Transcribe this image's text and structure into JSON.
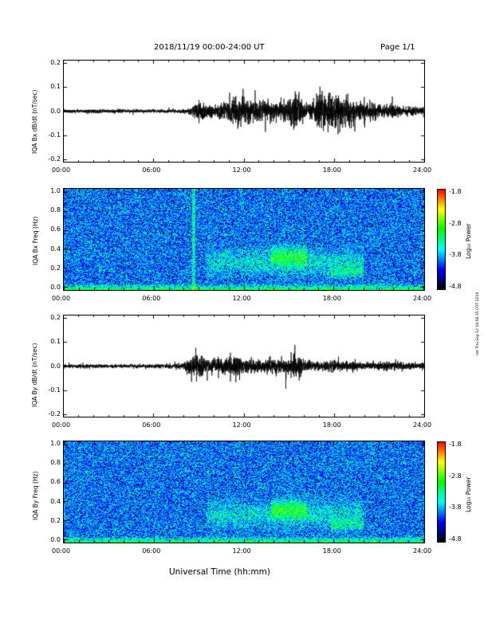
{
  "header": {
    "date_range": "2018/11/19  00:00-24:00 UT",
    "page": "Page 1/1"
  },
  "footer": {
    "xlabel": "Universal Time (hh:mm)"
  },
  "side_note": "nst Thu Sep 12 16:56:35 CDT 2019",
  "colorbar": {
    "ticks": [
      "-1.8",
      "-2.8",
      "-3.8",
      "-4.8"
    ],
    "label": "Log₁₀ Power",
    "colors": [
      "#ff0000",
      "#ffff00",
      "#00ff00",
      "#00ffff",
      "#0000ff",
      "#000000"
    ]
  },
  "chart_data": [
    {
      "type": "line",
      "ylabel": "IQA Bx dB/dt (nT/sec)",
      "x_ticks": [
        "00:00",
        "06:00",
        "12:00",
        "18:00",
        "24:00"
      ],
      "y_ticks": [
        "0.2",
        "0.1",
        "0.0",
        "-0.1",
        "-0.2"
      ],
      "xlim": [
        0,
        24
      ],
      "ylim": [
        -0.2,
        0.2
      ],
      "envelope": {
        "x_hours": [
          0,
          2,
          4,
          6,
          8,
          8.5,
          9,
          9.5,
          10,
          11,
          11.5,
          12,
          12.5,
          13,
          14,
          15,
          15.5,
          16,
          16.5,
          17,
          17.5,
          18,
          19,
          20,
          21,
          22,
          23,
          24
        ],
        "amplitude": [
          0.008,
          0.008,
          0.008,
          0.006,
          0.008,
          0.02,
          0.05,
          0.035,
          0.03,
          0.04,
          0.07,
          0.05,
          0.06,
          0.04,
          0.04,
          0.05,
          0.09,
          0.03,
          0.04,
          0.08,
          0.09,
          0.08,
          0.06,
          0.04,
          0.03,
          0.025,
          0.02,
          0.02
        ]
      }
    },
    {
      "type": "heatmap",
      "ylabel": "IQA Bx Freq (Hz)",
      "x_ticks": [
        "00:00",
        "06:00",
        "12:00",
        "18:00",
        "24:00"
      ],
      "y_ticks": [
        "1.0",
        "0.8",
        "0.6",
        "0.4",
        "0.2",
        "0.0"
      ],
      "xlim": [
        0,
        24
      ],
      "ylim": [
        0,
        1.0
      ],
      "zlim": [
        -4.8,
        -1.8
      ]
    },
    {
      "type": "line",
      "ylabel": "IQA By dB/dt (nT/sec)",
      "x_ticks": [
        "00:00",
        "06:00",
        "12:00",
        "18:00",
        "24:00"
      ],
      "y_ticks": [
        "0.2",
        "0.1",
        "0.0",
        "-0.1",
        "-0.2"
      ],
      "xlim": [
        0,
        24
      ],
      "ylim": [
        -0.2,
        0.2
      ],
      "envelope": {
        "x_hours": [
          0,
          2,
          4,
          6,
          7,
          8,
          8.5,
          9,
          9.5,
          10,
          11,
          11.5,
          12,
          13,
          14,
          15,
          15.5,
          16,
          17,
          18,
          19,
          20,
          21,
          22,
          23,
          24
        ],
        "amplitude": [
          0.008,
          0.008,
          0.008,
          0.008,
          0.01,
          0.015,
          0.04,
          0.06,
          0.03,
          0.03,
          0.035,
          0.05,
          0.03,
          0.03,
          0.03,
          0.035,
          0.05,
          0.025,
          0.02,
          0.025,
          0.02,
          0.018,
          0.018,
          0.018,
          0.015,
          0.015
        ]
      }
    },
    {
      "type": "heatmap",
      "ylabel": "IQA By Freq (Hz)",
      "x_ticks": [
        "00:00",
        "06:00",
        "12:00",
        "18:00",
        "24:00"
      ],
      "y_ticks": [
        "1.0",
        "0.8",
        "0.6",
        "0.4",
        "0.2",
        "0.0"
      ],
      "xlim": [
        0,
        24
      ],
      "ylim": [
        0,
        1.0
      ],
      "zlim": [
        -4.8,
        -1.8
      ]
    }
  ]
}
